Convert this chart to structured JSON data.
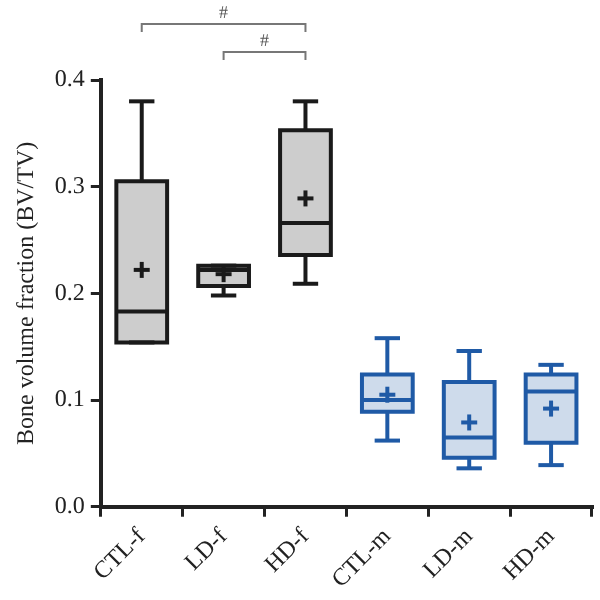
{
  "chart_data": {
    "type": "box",
    "ylabel": "Bone volume fraction (BV/TV)",
    "categories": [
      "CTL-f",
      "LD-f",
      "HD-f",
      "CTL-m",
      "LD-m",
      "HD-m"
    ],
    "colors": [
      "#1a1a1a",
      "#1a1a1a",
      "#1a1a1a",
      "#1f5aa6",
      "#1f5aa6",
      "#1f5aa6"
    ],
    "boxes": [
      {
        "low": 0.154,
        "q1": 0.154,
        "median": 0.183,
        "q3": 0.305,
        "high": 0.38,
        "mean": 0.222
      },
      {
        "low": 0.198,
        "q1": 0.207,
        "median": 0.222,
        "q3": 0.226,
        "high": 0.226,
        "mean": 0.218
      },
      {
        "low": 0.209,
        "q1": 0.236,
        "median": 0.266,
        "q3": 0.353,
        "high": 0.38,
        "mean": 0.289
      },
      {
        "low": 0.062,
        "q1": 0.089,
        "median": 0.1,
        "q3": 0.124,
        "high": 0.158,
        "mean": 0.105
      },
      {
        "low": 0.036,
        "q1": 0.046,
        "median": 0.065,
        "q3": 0.117,
        "high": 0.146,
        "mean": 0.079
      },
      {
        "low": 0.039,
        "q1": 0.06,
        "median": 0.108,
        "q3": 0.124,
        "high": 0.133,
        "mean": 0.092
      }
    ],
    "ylim": [
      0,
      0.4
    ],
    "yticks": [
      {
        "value": 0,
        "label": "0.0"
      },
      {
        "value": 0.1,
        "label": "0.1"
      },
      {
        "value": 0.2,
        "label": "0.2"
      },
      {
        "value": 0.3,
        "label": "0.3"
      },
      {
        "value": 0.4,
        "label": "0.4"
      }
    ],
    "grid": false,
    "annotations": [
      "#",
      "#"
    ]
  }
}
